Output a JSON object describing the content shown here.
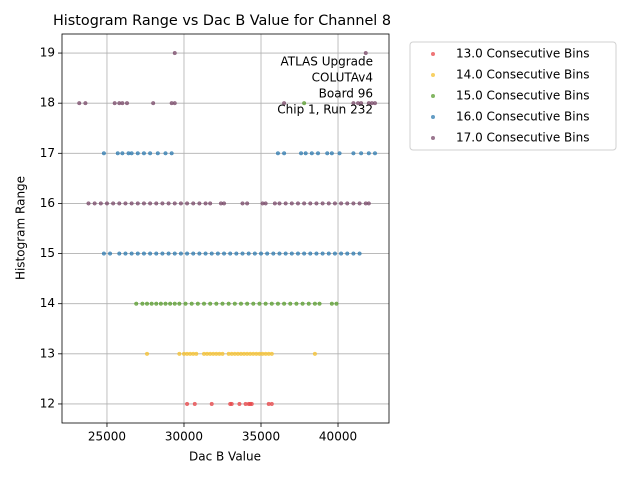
{
  "chart_data": {
    "type": "scatter",
    "title": "Histogram Range vs Dac B Value for Channel 8",
    "x_label": "Dac B Value",
    "y_label": "Histogram Range",
    "annotation": [
      "ATLAS Upgrade",
      "COLUTAv4",
      "Board 96",
      "Chip 1, Run 232"
    ],
    "xlim": [
      22080,
      43310
    ],
    "ylim": [
      11.62,
      19.38
    ],
    "xticks": [
      25000,
      30000,
      35000,
      40000
    ],
    "yticks": [
      12,
      13,
      14,
      15,
      16,
      17,
      18,
      19
    ],
    "grid": true,
    "legend": "outside-right",
    "series": [
      {
        "name": "13.0 Consecutive Bins",
        "color": "#e8474a",
        "x": [
          30200,
          30700,
          31800,
          33000,
          33100,
          33600,
          34000,
          34200,
          34300,
          34400,
          35500,
          35700
        ],
        "y": [
          12,
          12,
          12,
          12,
          12,
          12,
          12,
          12,
          12,
          12,
          12,
          12
        ]
      },
      {
        "name": "14.0 Consecutive Bins",
        "color": "#f5c230",
        "x": [
          27600,
          29700,
          30000,
          30200,
          30400,
          30600,
          30800,
          31300,
          31500,
          31700,
          31900,
          32100,
          32300,
          32500,
          32900,
          33100,
          33300,
          33500,
          33700,
          33900,
          34100,
          34300,
          34500,
          34700,
          34900,
          35100,
          35300,
          35500,
          35700,
          38500
        ],
        "y": [
          13,
          13,
          13,
          13,
          13,
          13,
          13,
          13,
          13,
          13,
          13,
          13,
          13,
          13,
          13,
          13,
          13,
          13,
          13,
          13,
          13,
          13,
          13,
          13,
          13,
          13,
          13,
          13,
          13,
          13
        ]
      },
      {
        "name": "15.0 Consecutive Bins",
        "color": "#5a9e2f",
        "x": [
          26900,
          27300,
          27600,
          27900,
          28200,
          28500,
          28800,
          29100,
          29400,
          29700,
          30100,
          30500,
          30900,
          31300,
          31700,
          32100,
          32500,
          32900,
          33300,
          33700,
          34100,
          34500,
          34900,
          35300,
          35700,
          36100,
          36500,
          36900,
          37300,
          37700,
          38100,
          38500,
          38800,
          39600,
          39900,
          37800
        ],
        "y": [
          14,
          14,
          14,
          14,
          14,
          14,
          14,
          14,
          14,
          14,
          14,
          14,
          14,
          14,
          14,
          14,
          14,
          14,
          14,
          14,
          14,
          14,
          14,
          14,
          14,
          14,
          14,
          14,
          14,
          14,
          14,
          14,
          14,
          14,
          14,
          18
        ]
      },
      {
        "name": "16.0 Consecutive Bins",
        "color": "#2f7bb0",
        "x": [
          24800,
          25200,
          25800,
          26200,
          26600,
          27000,
          27400,
          27800,
          28200,
          28600,
          29000,
          29400,
          29800,
          30200,
          30600,
          31000,
          31400,
          31800,
          32200,
          32600,
          33000,
          33400,
          33800,
          34200,
          34600,
          35000,
          35400,
          35800,
          36200,
          36600,
          37000,
          37400,
          37800,
          38200,
          38600,
          39000,
          39400,
          39800,
          40200,
          40600,
          41000,
          41400,
          24800,
          25700,
          26000,
          26400,
          26600,
          27000,
          27400,
          27800,
          28300,
          28800,
          29200,
          36100,
          36500,
          37600,
          37900,
          38300,
          38700,
          39300,
          39600,
          40100,
          41000,
          41500,
          42000,
          42400
        ],
        "y": [
          15,
          15,
          15,
          15,
          15,
          15,
          15,
          15,
          15,
          15,
          15,
          15,
          15,
          15,
          15,
          15,
          15,
          15,
          15,
          15,
          15,
          15,
          15,
          15,
          15,
          15,
          15,
          15,
          15,
          15,
          15,
          15,
          15,
          15,
          15,
          15,
          15,
          15,
          15,
          15,
          15,
          15,
          17,
          17,
          17,
          17,
          17,
          17,
          17,
          17,
          17,
          17,
          17,
          17,
          17,
          17,
          17,
          17,
          17,
          17,
          17,
          17,
          17,
          17,
          17,
          17
        ]
      },
      {
        "name": "17.0 Consecutive Bins",
        "color": "#7a4a6a",
        "x": [
          23800,
          24200,
          24600,
          25000,
          25400,
          25800,
          26200,
          26600,
          27000,
          27400,
          27800,
          28200,
          28600,
          29000,
          29400,
          29800,
          30200,
          30600,
          31000,
          31400,
          31700,
          32400,
          32600,
          33800,
          34100,
          35100,
          35300,
          35900,
          36200,
          36600,
          37000,
          37400,
          37800,
          38200,
          38600,
          39000,
          39400,
          39800,
          40200,
          40600,
          41000,
          41400,
          41800,
          42000,
          23200,
          23600,
          25500,
          25800,
          26000,
          26300,
          28000,
          29200,
          29400,
          36500,
          41000,
          41300,
          41500,
          42000,
          42200,
          42400,
          29400,
          41800
        ],
        "y": [
          16,
          16,
          16,
          16,
          16,
          16,
          16,
          16,
          16,
          16,
          16,
          16,
          16,
          16,
          16,
          16,
          16,
          16,
          16,
          16,
          16,
          16,
          16,
          16,
          16,
          16,
          16,
          16,
          16,
          16,
          16,
          16,
          16,
          16,
          16,
          16,
          16,
          16,
          16,
          16,
          16,
          16,
          16,
          16,
          18,
          18,
          18,
          18,
          18,
          18,
          18,
          18,
          18,
          18,
          18,
          18,
          18,
          18,
          18,
          18,
          19,
          19
        ]
      }
    ]
  }
}
